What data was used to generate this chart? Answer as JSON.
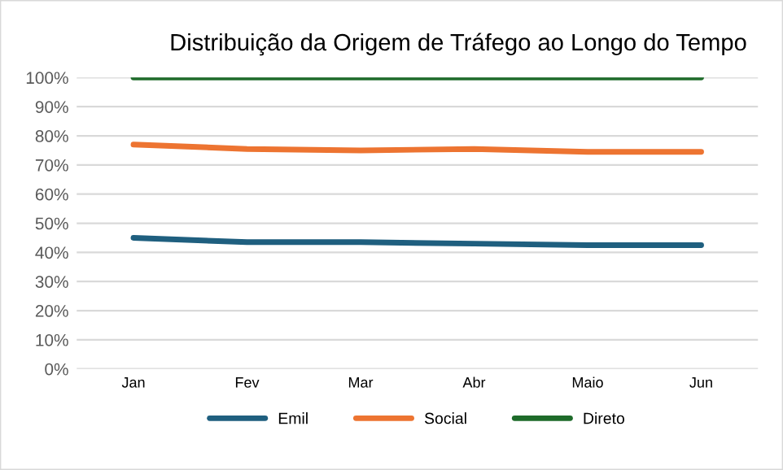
{
  "chart_data": {
    "type": "line",
    "title": "Distribuição da Origem de Tráfego ao Longo do Tempo",
    "categories": [
      "Jan",
      "Fev",
      "Mar",
      "Abr",
      "Maio",
      "Jun"
    ],
    "series": [
      {
        "name": "Emil",
        "color": "#1f5f7f",
        "values": [
          45,
          43.5,
          43.5,
          43,
          42.5,
          42.5
        ]
      },
      {
        "name": "Social",
        "color": "#ed7431",
        "values": [
          77,
          75.5,
          75,
          75.5,
          74.5,
          74.5
        ]
      },
      {
        "name": "Direto",
        "color": "#1e6b2a",
        "values": [
          100,
          100,
          100,
          100,
          100,
          100
        ]
      }
    ],
    "ylim": [
      0,
      100
    ],
    "yticks": [
      {
        "value": 0,
        "label": "0%"
      },
      {
        "value": 10,
        "label": "10%"
      },
      {
        "value": 20,
        "label": "20%"
      },
      {
        "value": 30,
        "label": "30%"
      },
      {
        "value": 40,
        "label": "40%"
      },
      {
        "value": 50,
        "label": "50%"
      },
      {
        "value": 60,
        "label": "60%"
      },
      {
        "value": 70,
        "label": "70%"
      },
      {
        "value": 80,
        "label": "80%"
      },
      {
        "value": 90,
        "label": "90%"
      },
      {
        "value": 100,
        "label": "100%"
      }
    ],
    "grid": "y",
    "legend": "bottom",
    "marker": "none",
    "line_style": "solid"
  }
}
